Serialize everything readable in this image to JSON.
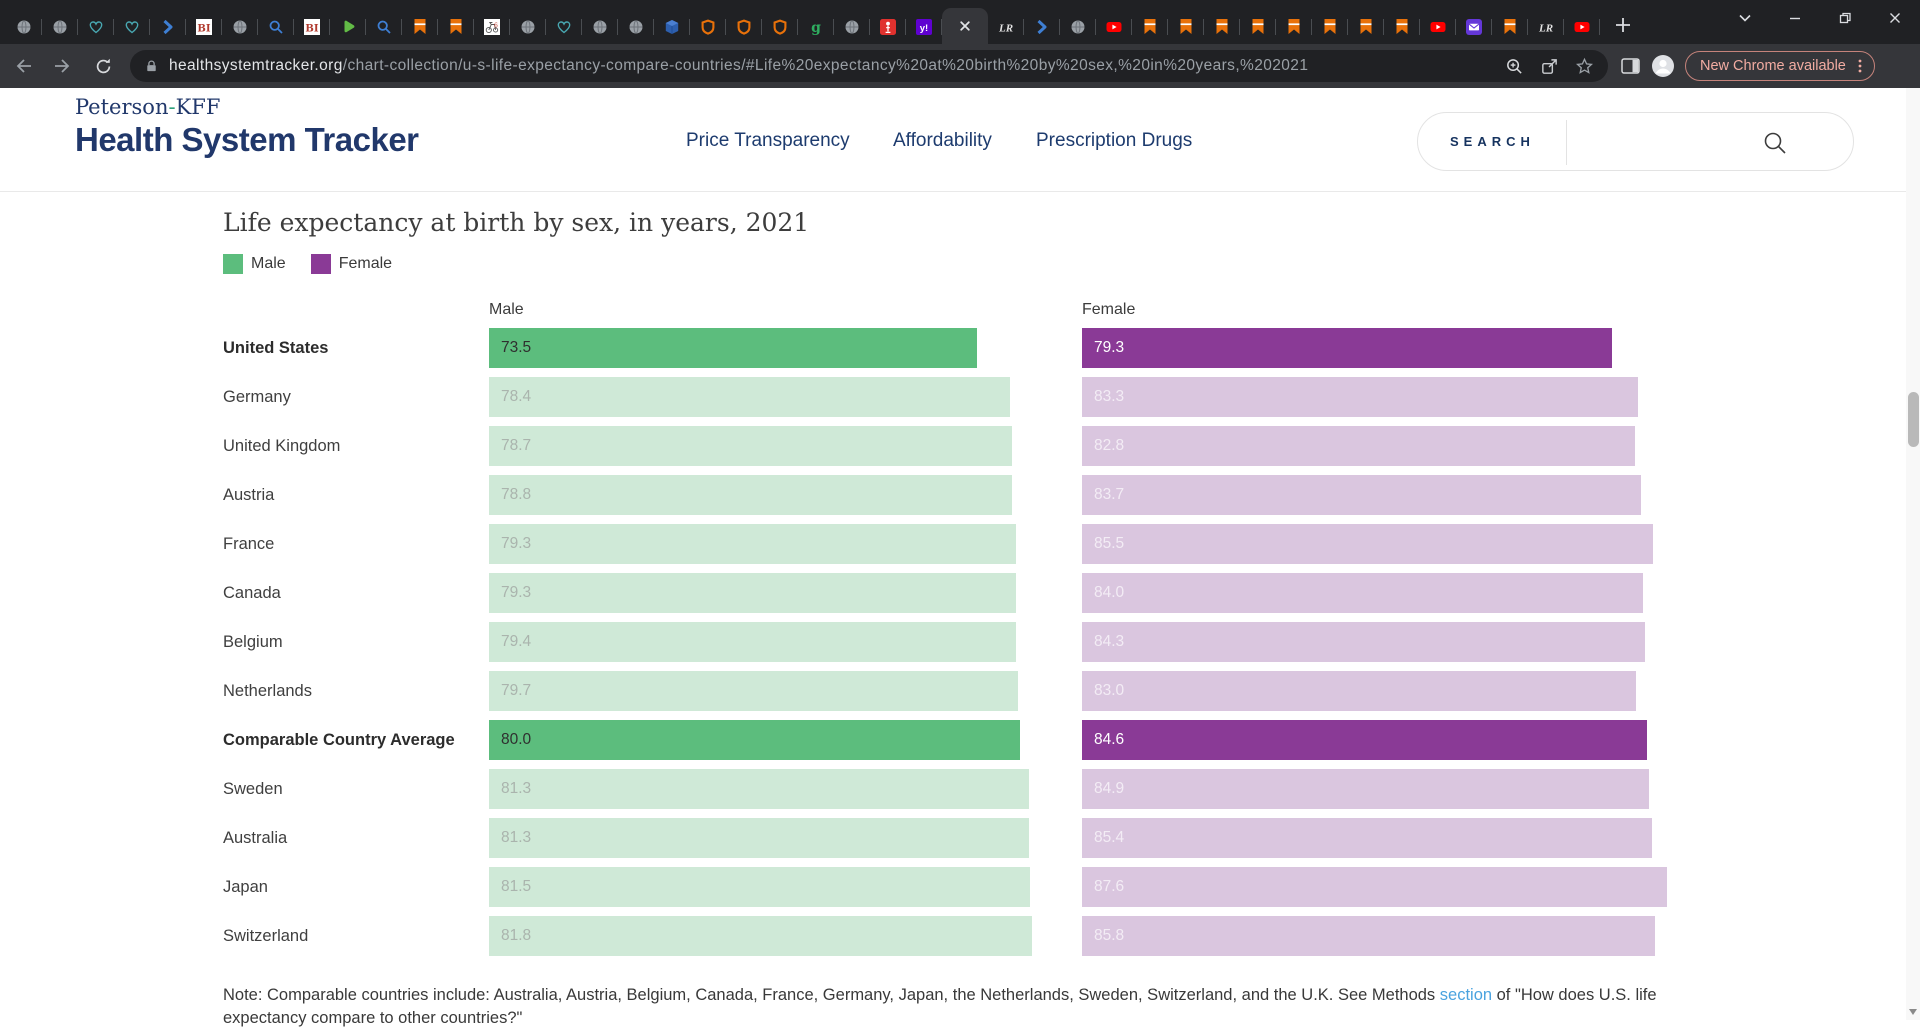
{
  "browser": {
    "tabs": [
      {
        "icon": "globe-icon"
      },
      {
        "icon": "globe-icon"
      },
      {
        "icon": "heart-pulse-icon"
      },
      {
        "icon": "heart-pulse-icon"
      },
      {
        "icon": "chevron-blue-icon"
      },
      {
        "icon": "bi-logo-icon"
      },
      {
        "icon": "globe-icon"
      },
      {
        "icon": "search-blue-icon"
      },
      {
        "icon": "bi-logo-icon"
      },
      {
        "icon": "play-green-icon"
      },
      {
        "icon": "search-blue-icon"
      },
      {
        "icon": "bookmark-orange-icon"
      },
      {
        "icon": "bookmark-orange-icon"
      },
      {
        "icon": "vintage-bike-icon"
      },
      {
        "icon": "globe-icon"
      },
      {
        "icon": "heart-pulse-icon"
      },
      {
        "icon": "globe-icon"
      },
      {
        "icon": "globe-icon"
      },
      {
        "icon": "cube-blue-icon"
      },
      {
        "icon": "shield-orange-icon"
      },
      {
        "icon": "shield-orange-icon"
      },
      {
        "icon": "shield-orange-icon"
      },
      {
        "icon": "goodreads-icon"
      },
      {
        "icon": "globe-icon"
      },
      {
        "icon": "torch-red-icon"
      },
      {
        "icon": "yahoo-icon"
      },
      {
        "icon": "close-icon",
        "active": true
      },
      {
        "icon": "lr-italic-icon"
      },
      {
        "icon": "chevron-blue-icon"
      },
      {
        "icon": "globe-icon"
      },
      {
        "icon": "youtube-icon"
      },
      {
        "icon": "bookmark-orange-icon"
      },
      {
        "icon": "bookmark-orange-icon"
      },
      {
        "icon": "bookmark-orange-icon"
      },
      {
        "icon": "bookmark-orange-icon"
      },
      {
        "icon": "bookmark-orange-icon"
      },
      {
        "icon": "bookmark-orange-icon"
      },
      {
        "icon": "bookmark-orange-icon"
      },
      {
        "icon": "bookmark-orange-icon"
      },
      {
        "icon": "youtube-icon"
      },
      {
        "icon": "mail-purple-icon"
      },
      {
        "icon": "bookmark-orange-icon"
      },
      {
        "icon": "lr-italic-icon"
      },
      {
        "icon": "youtube-icon"
      }
    ],
    "url": {
      "domain": "healthsystemtracker.org",
      "path": "/chart-collection/u-s-life-expectancy-compare-countries/#Life%20expectancy%20at%20birth%20by%20sex,%20in%20years,%202021"
    },
    "update_button_label": "New Chrome available"
  },
  "site_header": {
    "logo_pre": "Peterson",
    "logo_dash": "-",
    "logo_post": "KFF",
    "logo_main": "Health System Tracker",
    "nav": [
      "Price Transparency",
      "Affordability",
      "Prescription Drugs"
    ],
    "search_label": "SEARCH"
  },
  "chart_data": {
    "type": "bar",
    "title": "Life expectancy at birth by sex, in years, 2021",
    "legend": [
      "Male",
      "Female"
    ],
    "column_headers": [
      "Male",
      "Female"
    ],
    "categories": [
      "United States",
      "Germany",
      "United Kingdom",
      "Austria",
      "France",
      "Canada",
      "Belgium",
      "Netherlands",
      "Comparable Country Average",
      "Sweden",
      "Australia",
      "Japan",
      "Switzerland"
    ],
    "series": [
      {
        "name": "Male",
        "values": [
          73.5,
          78.4,
          78.7,
          78.8,
          79.3,
          79.3,
          79.4,
          79.7,
          80.0,
          81.3,
          81.3,
          81.5,
          81.8
        ]
      },
      {
        "name": "Female",
        "values": [
          79.3,
          83.3,
          82.8,
          83.7,
          85.5,
          84.0,
          84.3,
          83.0,
          84.6,
          84.9,
          85.4,
          87.6,
          85.8
        ]
      }
    ],
    "highlight_rows": [
      0,
      8
    ],
    "xlim": [
      0,
      87.6
    ],
    "grid": false,
    "legend_position": "top-left",
    "colors": {
      "male_highlight": "#5cbd7d",
      "male_light": "#cfe9d7",
      "female_highlight": "#8a3a96",
      "female_light": "#dac6df",
      "male_label_highlight": "#2f2f2f",
      "male_label_light": "#aab4ad",
      "female_label_highlight": "#ffffff",
      "female_label_light": "#f3ecf5"
    }
  },
  "note": {
    "prefix": "Note: Comparable countries include: Australia, Austria, Belgium, Canada, France, Germany, Japan, the Netherlands, Sweden, Switzerland, and the U.K. See Methods ",
    "link_text": "section",
    "suffix": " of \"How does U.S. life expectancy compare to other countries?\""
  }
}
